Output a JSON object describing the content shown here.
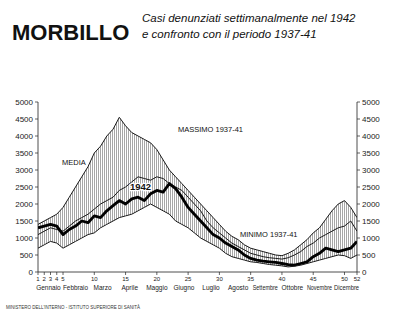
{
  "chart_data": {
    "type": "line",
    "title": "MORBILLO",
    "subtitle": [
      "Casi denunziati settimanalmente nel 1942",
      "e confronto con il periodo 1937-41"
    ],
    "x": [
      1,
      2,
      3,
      4,
      5,
      6,
      7,
      8,
      9,
      10,
      11,
      12,
      13,
      14,
      15,
      16,
      17,
      18,
      19,
      20,
      21,
      22,
      23,
      24,
      25,
      26,
      27,
      28,
      29,
      30,
      31,
      32,
      33,
      34,
      35,
      36,
      37,
      38,
      39,
      40,
      41,
      42,
      43,
      44,
      45,
      46,
      47,
      48,
      49,
      50,
      51,
      52
    ],
    "xlim": [
      1,
      52
    ],
    "xticks": [
      1,
      2,
      3,
      4,
      5,
      10,
      15,
      20,
      25,
      30,
      35,
      40,
      45,
      50,
      52
    ],
    "month_labels": [
      "Gennaio",
      "Febbraio",
      "Marzo",
      "Aprile",
      "Maggio",
      "Giugno",
      "Luglio",
      "Agosto",
      "Settembre",
      "Ottobre",
      "Novembre",
      "Dicembre"
    ],
    "ylim": [
      0,
      5000
    ],
    "yticks": [
      0,
      500,
      1000,
      1500,
      2000,
      2500,
      3000,
      3500,
      4000,
      4500,
      5000
    ],
    "grid": false,
    "series": [
      {
        "name": "MASSIMO 1937-41",
        "color": "#1a1a1a",
        "line_style": "solid",
        "values": [
          1400,
          1500,
          1600,
          1700,
          1900,
          2200,
          2500,
          2800,
          3100,
          3500,
          3700,
          4000,
          4200,
          4550,
          4300,
          4100,
          4000,
          3900,
          3800,
          3600,
          3300,
          3000,
          2800,
          2600,
          2400,
          2200,
          2000,
          1800,
          1600,
          1400,
          1200,
          1050,
          950,
          800,
          700,
          650,
          600,
          550,
          500,
          480,
          550,
          650,
          800,
          950,
          1150,
          1300,
          1550,
          1800,
          2000,
          2100,
          1900,
          1600
        ]
      },
      {
        "name": "MEDIA",
        "color": "#1a1a1a",
        "line_style": "solid",
        "values": [
          1100,
          1200,
          1300,
          1250,
          1200,
          1350,
          1500,
          1600,
          1700,
          1850,
          2000,
          2100,
          2200,
          2400,
          2500,
          2650,
          2800,
          2750,
          2700,
          2800,
          2750,
          2600,
          2500,
          2400,
          2200,
          2000,
          1800,
          1500,
          1300,
          1150,
          1000,
          850,
          750,
          650,
          550,
          500,
          450,
          420,
          400,
          380,
          420,
          500,
          600,
          750,
          850,
          1000,
          1100,
          1200,
          1300,
          1350,
          1500,
          1200
        ]
      },
      {
        "name": "1942",
        "color": "#000000",
        "line_style": "thick",
        "values": [
          1300,
          1350,
          1400,
          1350,
          1100,
          1250,
          1350,
          1500,
          1450,
          1650,
          1600,
          1800,
          1950,
          2100,
          2000,
          2150,
          2200,
          2100,
          2300,
          2400,
          2350,
          2600,
          2450,
          2200,
          1900,
          1700,
          1500,
          1300,
          1100,
          1000,
          850,
          750,
          650,
          500,
          400,
          350,
          320,
          300,
          280,
          250,
          220,
          200,
          250,
          300,
          450,
          550,
          700,
          650,
          600,
          650,
          700,
          900
        ]
      },
      {
        "name": "MINIMO 1937-41",
        "color": "#1a1a1a",
        "line_style": "solid",
        "values": [
          700,
          800,
          900,
          850,
          700,
          800,
          900,
          1000,
          1100,
          1150,
          1300,
          1400,
          1500,
          1600,
          1650,
          1700,
          1800,
          1900,
          2000,
          1900,
          1800,
          1700,
          1500,
          1400,
          1300,
          1150,
          1000,
          900,
          800,
          700,
          550,
          450,
          400,
          350,
          300,
          280,
          250,
          220,
          200,
          180,
          150,
          170,
          200,
          250,
          300,
          350,
          400,
          450,
          500,
          480,
          400,
          500
        ]
      }
    ],
    "footer": "MINISTERO DELL'INTERNO - ISTITUTO SUPERIORE DI SANITÀ"
  }
}
